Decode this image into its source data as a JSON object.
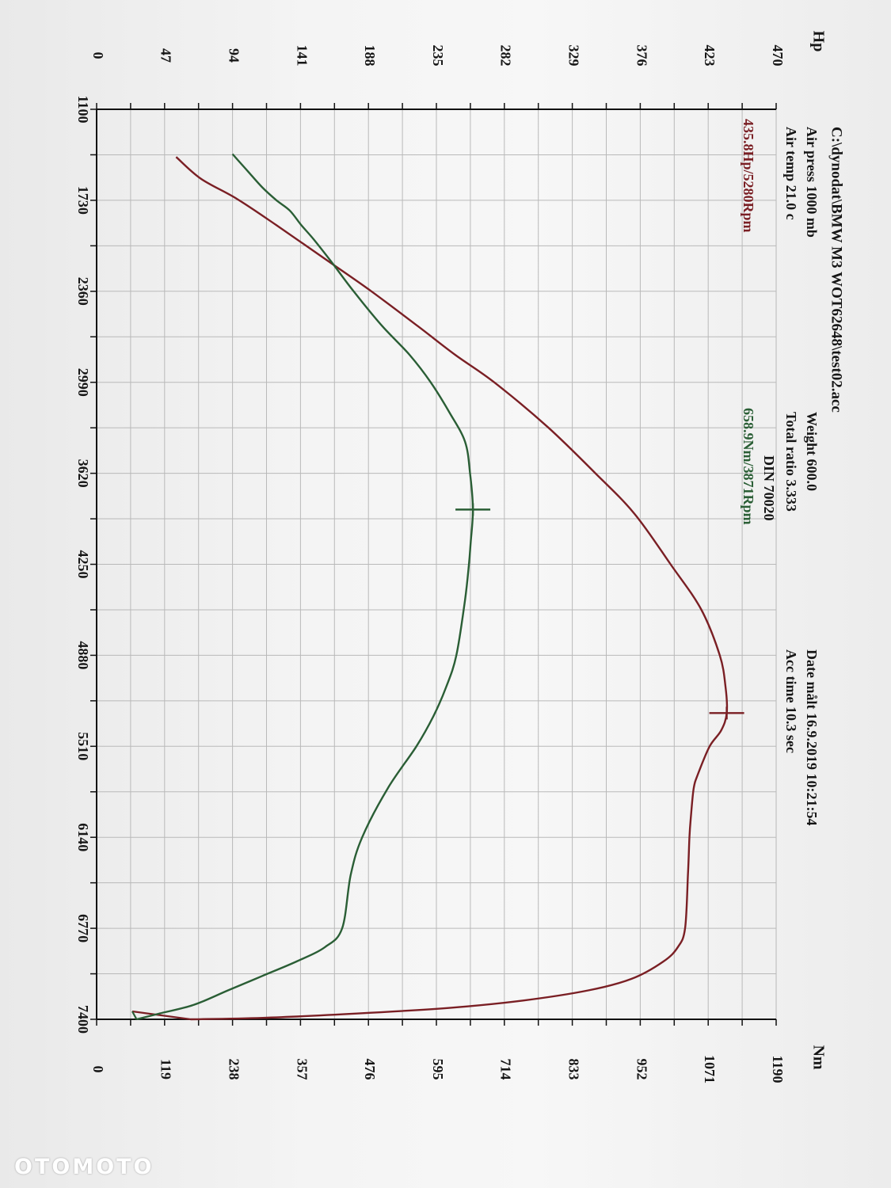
{
  "chart_data": {
    "type": "line",
    "file": "C:\\dynodat\\BMW M3 WOT62648\\test02.acc",
    "info": {
      "air_press": "Air press  1000 mb",
      "air_temp": "Air temp  21.0 c",
      "weight": "Weight   600.0",
      "total_ratio": "Total ratio 3.333",
      "din": "DIN 70020",
      "date": "Date målt 16.9.2019 10:21:54",
      "acc_time": "Acc time  10.3 sec"
    },
    "peaks": {
      "power_label": "435.8Hp/5280Rpm",
      "torque_label": "658.9Nm/3871Rpm",
      "power": {
        "rpm": 5280,
        "value": 435.8
      },
      "torque": {
        "rpm": 3871,
        "value": 658.9
      }
    },
    "x_ticks": [
      "1100",
      "1730",
      "2360",
      "2990",
      "3620",
      "4250",
      "4880",
      "5510",
      "6140",
      "6770",
      "7400"
    ],
    "xlim": [
      1100,
      7400
    ],
    "left_axis": {
      "unit": "Hp",
      "ticks": [
        "0",
        "47",
        "94",
        "141",
        "188",
        "235",
        "282",
        "329",
        "376",
        "423",
        "470"
      ],
      "range": [
        0,
        470
      ]
    },
    "right_axis": {
      "unit": "Nm",
      "ticks": [
        "0",
        "119",
        "238",
        "357",
        "476",
        "595",
        "714",
        "833",
        "952",
        "1071",
        "1190"
      ],
      "range": [
        0,
        1190
      ]
    },
    "grid": true,
    "series": [
      {
        "name": "Hp",
        "axis": "left",
        "color": "#7a1f24",
        "rpm": [
          1430,
          1580,
          1720,
          1900,
          2150,
          2360,
          2600,
          2800,
          2990,
          3300,
          3620,
          3900,
          4250,
          4560,
          4880,
          5100,
          5280,
          5400,
          5510,
          5700,
          5800,
          6000,
          6140,
          6400,
          6770,
          6900,
          7000,
          7120,
          7200,
          7270,
          7320,
          7360,
          7390,
          7400
        ],
        "value": [
          55,
          72,
          97,
          124,
          160,
          190,
          222,
          248,
          275,
          312,
          345,
          372,
          397,
          418,
          431,
          435,
          435.8,
          432,
          424,
          416,
          413,
          411,
          410,
          409,
          407,
          402,
          392,
          370,
          340,
          295,
          245,
          180,
          115,
          65
        ]
      },
      {
        "name": "Nm",
        "axis": "right",
        "color": "#2a5e35",
        "rpm": [
          1410,
          1530,
          1640,
          1730,
          1800,
          1900,
          2000,
          2150,
          2360,
          2600,
          2800,
          2990,
          3200,
          3400,
          3620,
          3871,
          4100,
          4250,
          4500,
          4880,
          5100,
          5300,
          5510,
          5800,
          6140,
          6400,
          6770,
          6900,
          7000,
          7100,
          7200,
          7300,
          7360,
          7400
        ],
        "value": [
          238,
          265,
          290,
          315,
          338,
          358,
          380,
          410,
          450,
          500,
          548,
          585,
          618,
          645,
          654,
          658.9,
          655,
          652,
          645,
          630,
          612,
          590,
          560,
          510,
          465,
          445,
          430,
          400,
          350,
          290,
          230,
          170,
          110,
          70
        ]
      }
    ]
  },
  "watermark": "OTOMOTO"
}
